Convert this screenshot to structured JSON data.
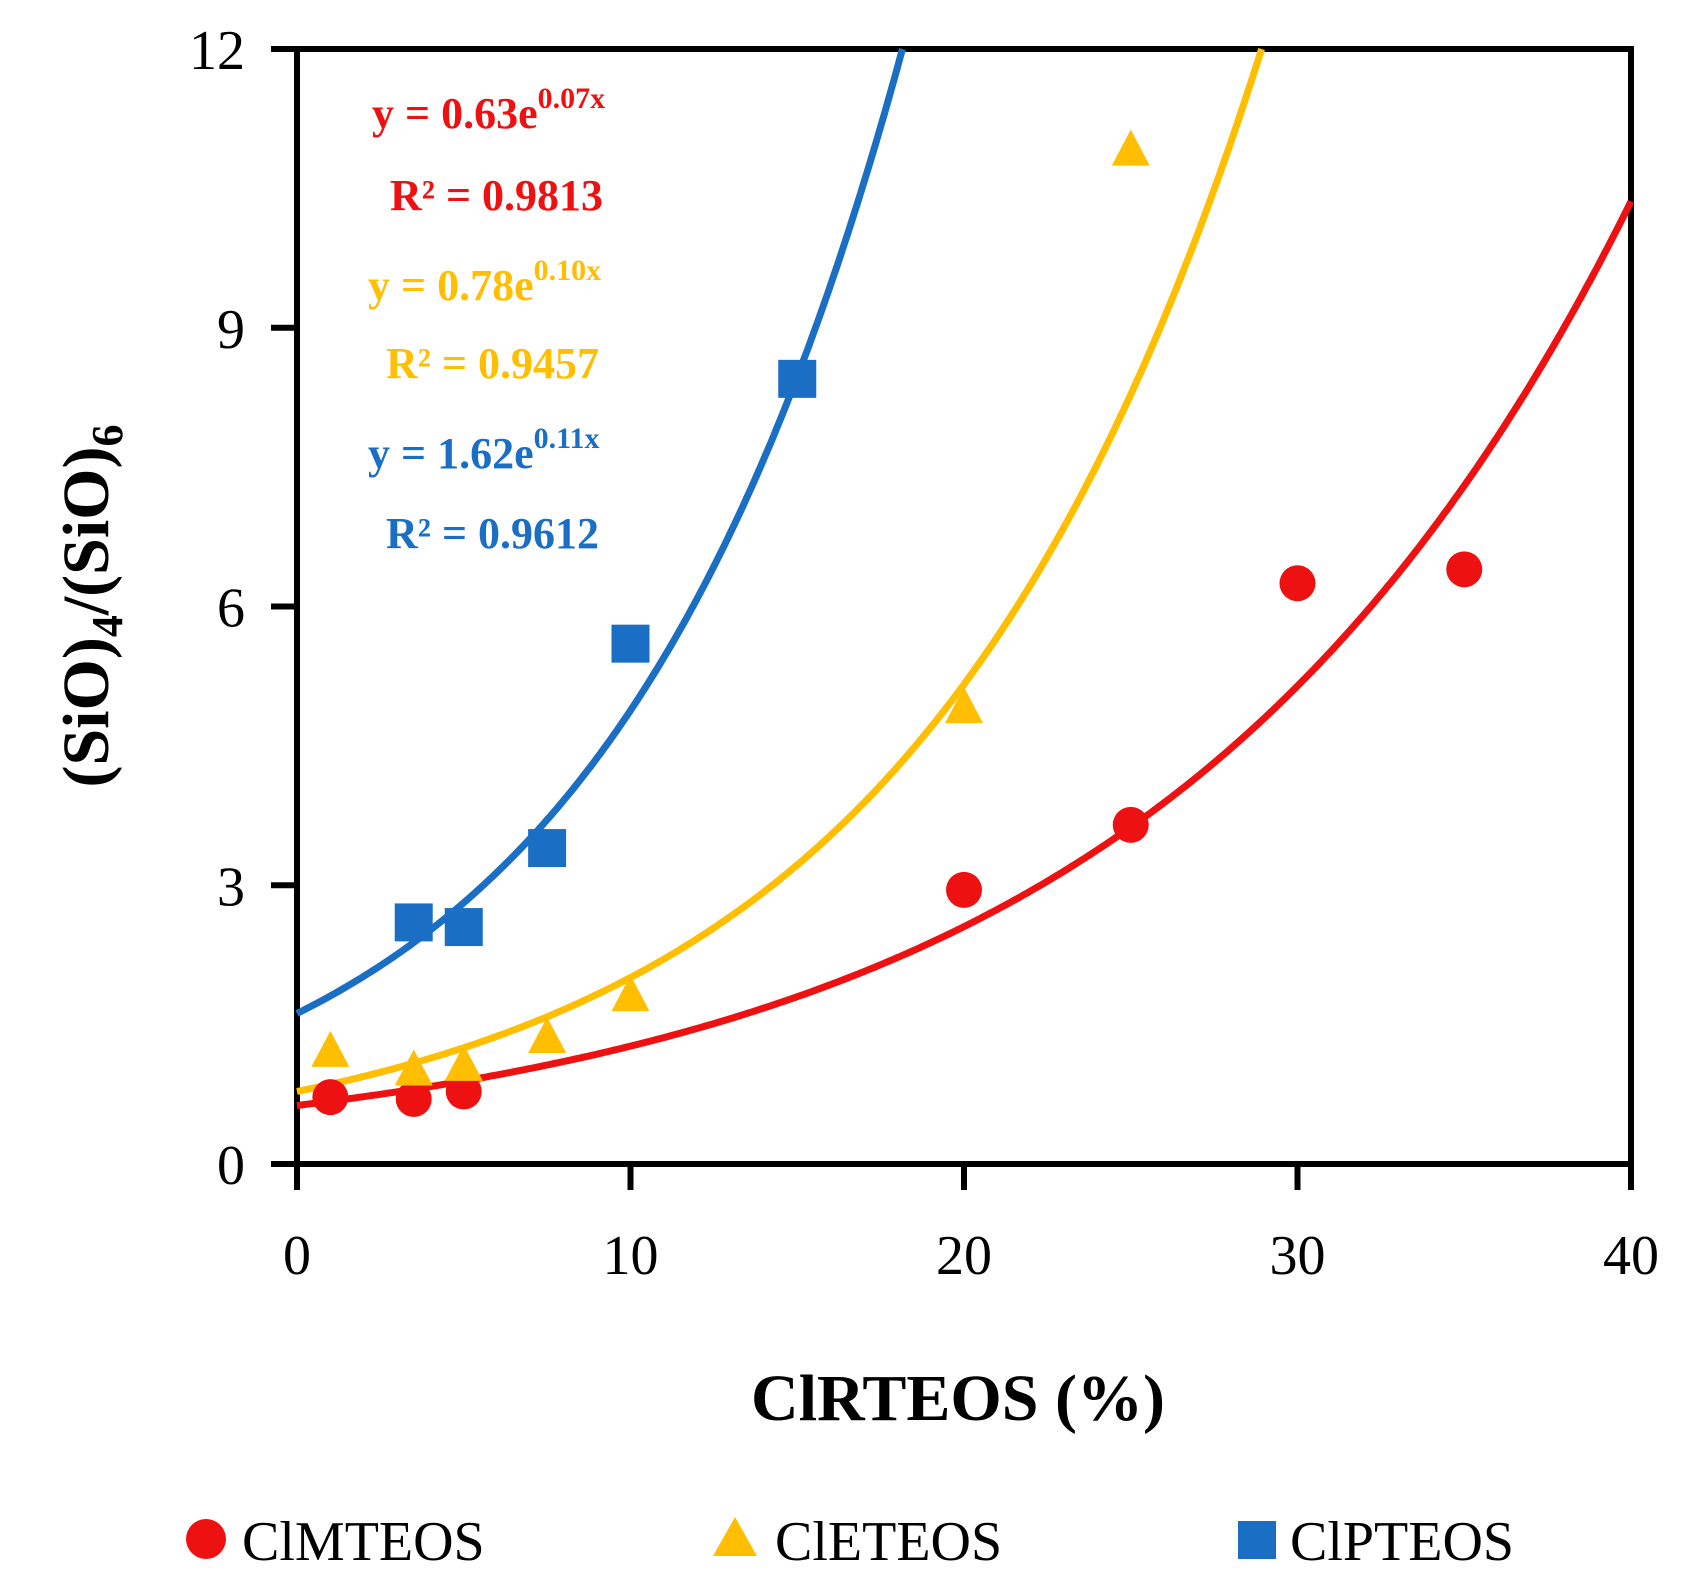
{
  "chart_data": {
    "type": "scatter",
    "xlabel": "ClRTEOS (%)",
    "ylabel": {
      "main": "(SiO)",
      "sub1": "4",
      "sep": "/(SiO)",
      "sub2": "6"
    },
    "xlim": [
      0,
      40
    ],
    "ylim": [
      0,
      12
    ],
    "x_ticks": [
      "0",
      "10",
      "20",
      "30",
      "40"
    ],
    "y_ticks": [
      "0",
      "3",
      "6",
      "9",
      "12"
    ],
    "legend_position": "bottom",
    "grid": false,
    "series": [
      {
        "name": "ClMTEOS",
        "marker": "circle",
        "color": "#ee1111",
        "points": [
          [
            1,
            0.72
          ],
          [
            3.5,
            0.7
          ],
          [
            5,
            0.78
          ],
          [
            20,
            2.95
          ],
          [
            25,
            3.65
          ],
          [
            30,
            6.25
          ],
          [
            35,
            6.4
          ]
        ],
        "fit": {
          "a": 0.63,
          "b": 0.07,
          "equation_prefix": "y = 0.63e",
          "equation_exp": "0.07x",
          "r2_text": "R² = 0.9813"
        }
      },
      {
        "name": "ClETEOS",
        "marker": "triangle",
        "color": "#ffbf00",
        "points": [
          [
            1,
            1.2
          ],
          [
            3.5,
            1.0
          ],
          [
            5,
            1.05
          ],
          [
            7.5,
            1.35
          ],
          [
            10,
            1.8
          ],
          [
            20,
            4.9
          ],
          [
            25,
            10.9
          ]
        ],
        "fit": {
          "a": 0.78,
          "b": 0.0945,
          "equation_prefix": "y = 0.78e",
          "equation_exp": "0.10x",
          "r2_text": "R² = 0.9457"
        }
      },
      {
        "name": "ClPTEOS",
        "marker": "square",
        "color": "#1a6fc4",
        "points": [
          [
            3.5,
            2.6
          ],
          [
            5,
            2.55
          ],
          [
            7.5,
            3.4
          ],
          [
            10,
            5.6
          ],
          [
            15,
            8.45
          ]
        ],
        "fit": {
          "a": 1.62,
          "b": 0.1103,
          "equation_prefix": "y = 1.62e",
          "equation_exp": "0.11x",
          "r2_text": "R² = 0.9612"
        }
      }
    ]
  }
}
